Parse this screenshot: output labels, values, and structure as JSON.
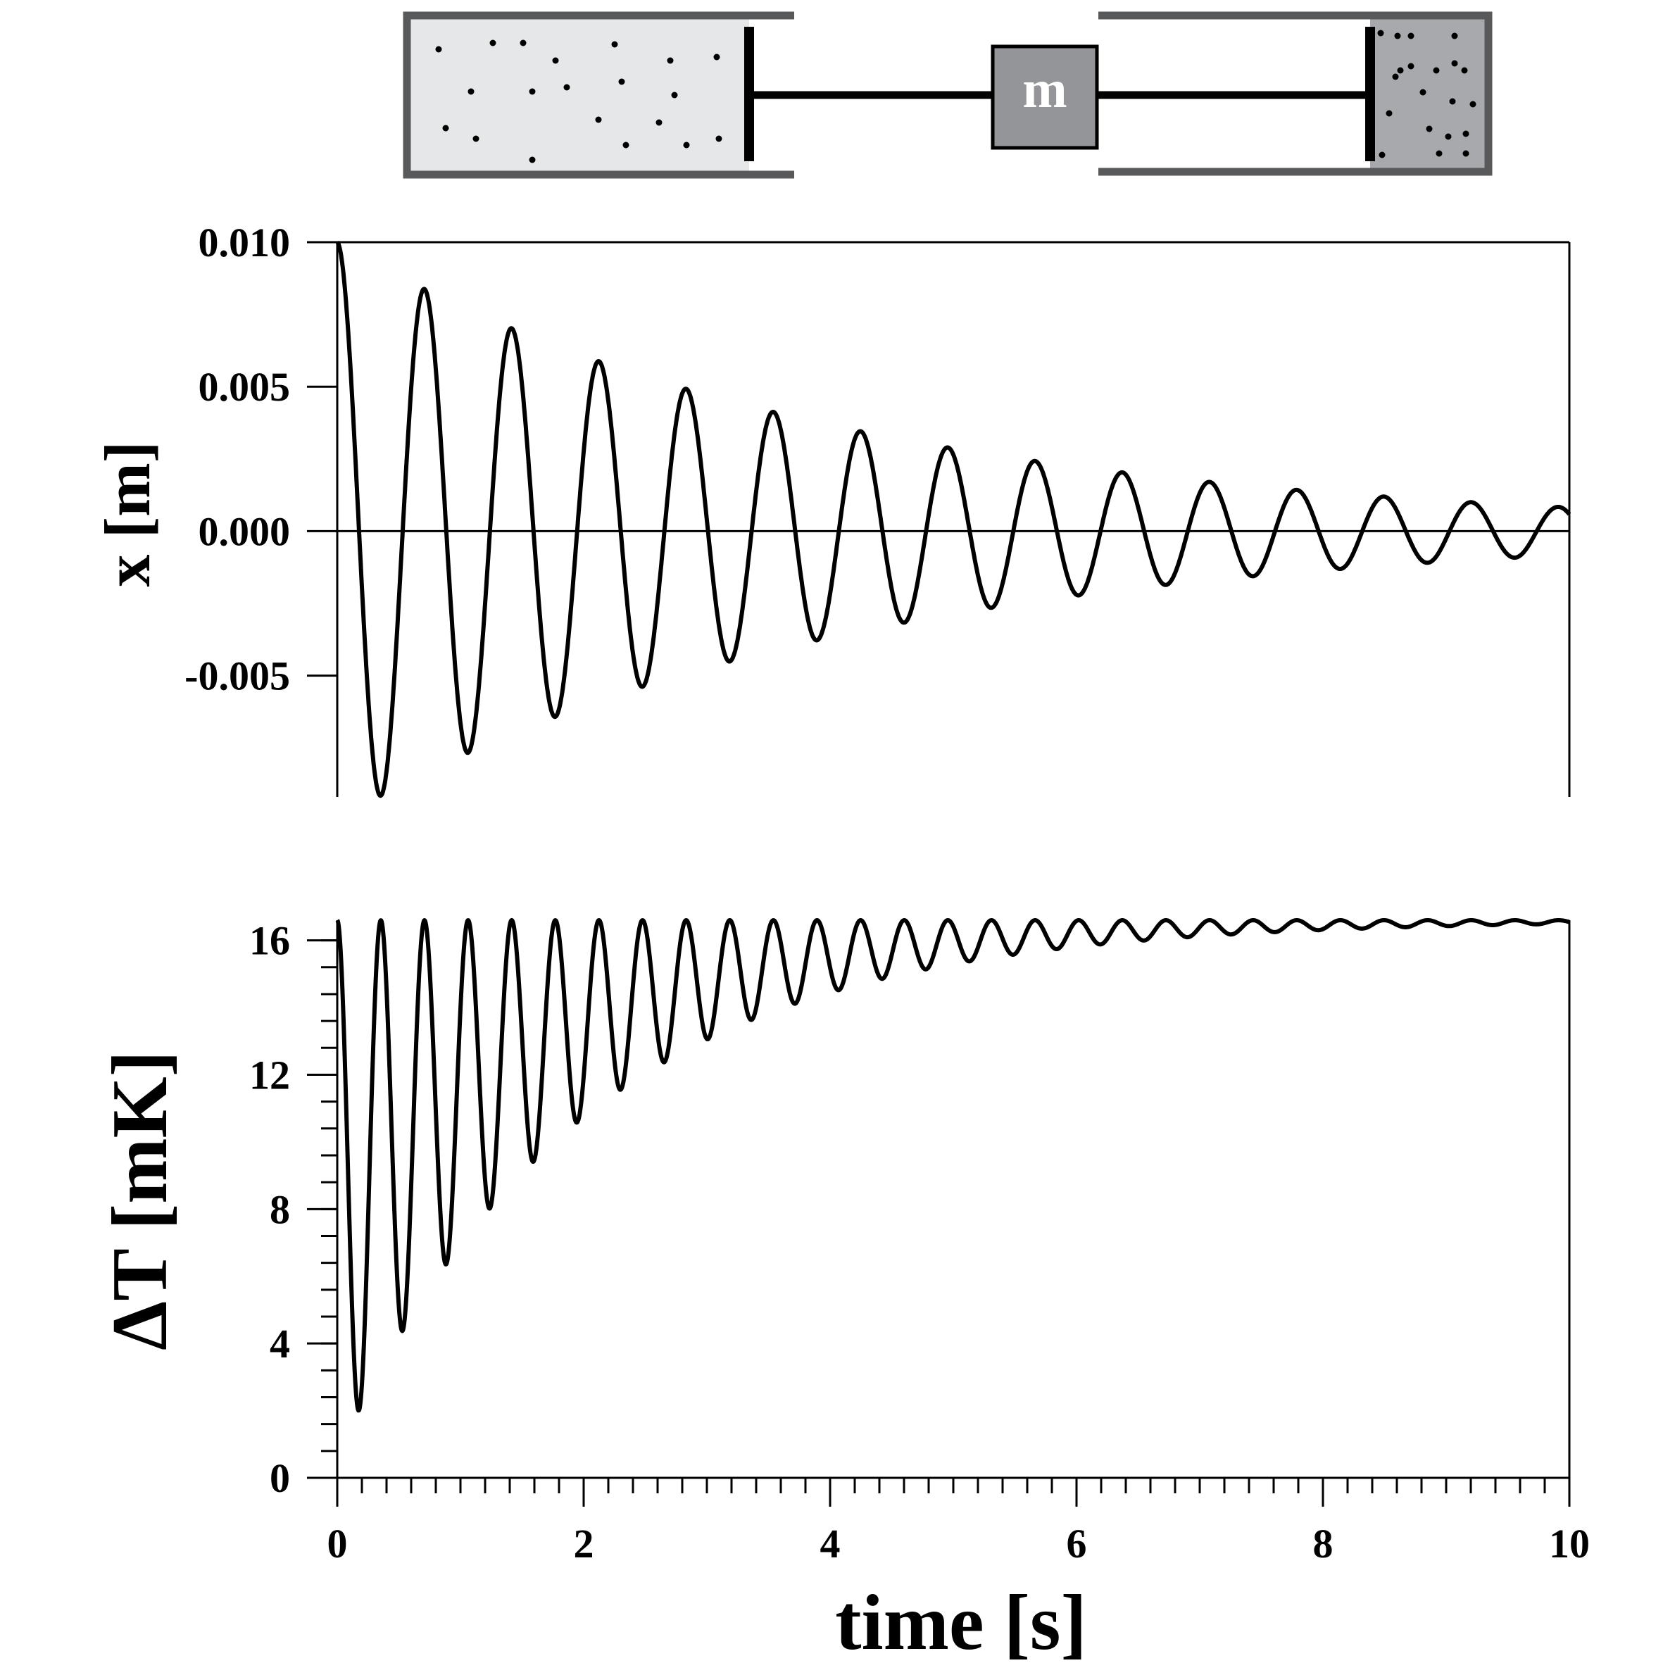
{
  "diagram": {
    "mass_label": "m",
    "colors": {
      "left_chamber_fill": "#e6e7e8",
      "right_chamber_fill": "#a7a9ac",
      "mass_fill": "#939598",
      "wall": "#58595b",
      "rod": "#000000"
    }
  },
  "chart_data": [
    {
      "type": "line",
      "ylabel": "x [m]",
      "xlabel": "",
      "xlim": [
        0,
        10
      ],
      "ylim": [
        -0.0092,
        0.01
      ],
      "yticks": [
        0.01,
        0.005,
        0.0,
        -0.005
      ],
      "ytick_labels": [
        "0.010",
        "0.005",
        "0.000",
        "-0.005"
      ],
      "zero_line": true,
      "grid": false,
      "series": [
        {
          "model": "damped_cosine",
          "color": "#000000",
          "amplitude": 0.01,
          "period": 0.708,
          "decay_rate": 0.25,
          "x": [
            0,
            0.35,
            0.71,
            1.06,
            1.42,
            1.77,
            2.13,
            2.48,
            2.83,
            3.19,
            3.54,
            3.89,
            4.25,
            4.6,
            4.96,
            5.31,
            5.66,
            6.02,
            6.37,
            6.73,
            7.08,
            7.43,
            7.79,
            8.14,
            8.5,
            8.85,
            9.2,
            9.56,
            9.91
          ],
          "y": [
            0.01,
            -0.0091,
            0.0084,
            -0.0077,
            0.007,
            -0.0064,
            0.0059,
            -0.0054,
            0.0049,
            -0.0045,
            0.0041,
            -0.0038,
            0.0035,
            -0.0032,
            0.0029,
            -0.0027,
            0.0024,
            -0.0022,
            0.002,
            -0.0019,
            0.0017,
            -0.0016,
            0.0014,
            -0.0013,
            0.0012,
            -0.0011,
            0.0011,
            -0.001,
            0.0009
          ]
        }
      ]
    },
    {
      "type": "line",
      "ylabel": "ΔT [mK]",
      "xlabel": "time [s]",
      "xlim": [
        0,
        10
      ],
      "ylim": [
        0,
        16.6
      ],
      "xticks": [
        0,
        2,
        4,
        6,
        8,
        10
      ],
      "xtick_labels": [
        "0",
        "2",
        "4",
        "6",
        "8",
        "10"
      ],
      "yticks": [
        0,
        4,
        8,
        12,
        16
      ],
      "ytick_labels": [
        "0",
        "4",
        "8",
        "12",
        "16"
      ],
      "x_minor_tick_step": 0.2,
      "y_minor_tick_step": 0.8,
      "grid": false,
      "series": [
        {
          "model": "temperature_envelope",
          "color": "#000000",
          "t_max": 16.6,
          "oscillation_period": 0.354,
          "decay_rate": 0.5,
          "x": [
            0,
            0.18,
            0.35,
            0.53,
            0.71,
            0.89,
            1.06,
            1.24,
            1.42,
            1.59,
            1.77,
            1.95,
            2.13,
            2.3,
            2.48,
            2.66,
            2.83,
            3.01,
            3.19,
            3.36,
            3.54,
            3.72,
            3.89,
            4.07,
            4.25,
            4.43,
            4.6,
            4.78,
            4.96,
            5.13,
            5.31,
            5.49,
            5.66,
            5.84,
            6.02,
            6.2,
            6.37,
            6.55,
            6.73,
            6.9,
            7.08,
            7.26,
            7.43,
            7.61,
            7.79,
            7.97,
            8.14,
            8.32,
            8.5,
            8.67,
            8.85,
            9.03,
            9.2,
            9.38,
            9.56,
            9.74,
            9.91,
            10
          ],
          "y": [
            16.6,
            1.4,
            16.6,
            3.9,
            16.6,
            6.0,
            16.6,
            7.7,
            16.6,
            9.1,
            16.6,
            10.4,
            16.6,
            11.4,
            16.6,
            12.3,
            16.6,
            13.0,
            16.6,
            13.6,
            16.6,
            14.1,
            16.6,
            14.5,
            16.6,
            14.8,
            16.6,
            15.1,
            16.6,
            15.4,
            16.6,
            15.6,
            16.6,
            15.8,
            16.6,
            15.9,
            16.6,
            16.0,
            16.6,
            16.1,
            16.6,
            16.2,
            16.6,
            16.3,
            16.6,
            16.35,
            16.6,
            16.4,
            16.6,
            16.45,
            16.6,
            16.48,
            16.6,
            16.5,
            16.6,
            16.52,
            16.6,
            16.56
          ]
        }
      ]
    }
  ]
}
